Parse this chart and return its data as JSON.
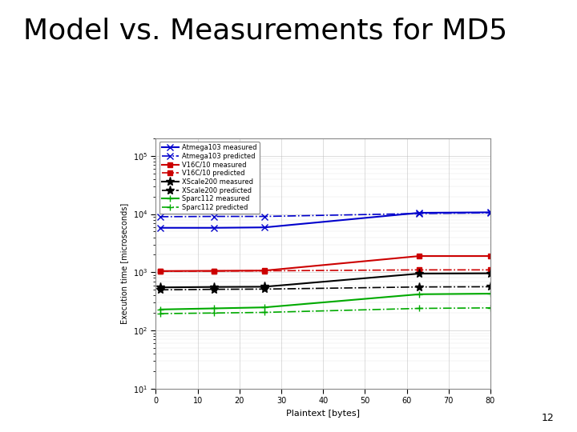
{
  "title": "Model vs. Measurements for MD5",
  "title_fontsize": 26,
  "xlabel": "Plaintext [bytes]",
  "ylabel": "Execution time [microseconds]",
  "x_values": [
    1,
    14,
    26,
    63,
    80
  ],
  "series": [
    {
      "label": "Atmega103 measured",
      "color": "#0000cc",
      "linestyle": "-",
      "marker": "x",
      "linewidth": 1.5,
      "markersize": 6,
      "y": [
        5800,
        5800,
        5900,
        10500,
        10700
      ]
    },
    {
      "label": "Atmega103 predicted",
      "color": "#0000cc",
      "linestyle": "-.",
      "marker": "x",
      "linewidth": 1.2,
      "markersize": 6,
      "y": [
        9000,
        9100,
        9100,
        10200,
        10500
      ]
    },
    {
      "label": "V16C/10 measured",
      "color": "#cc0000",
      "linestyle": "-",
      "marker": "s",
      "linewidth": 1.5,
      "markersize": 5,
      "y": [
        1050,
        1060,
        1070,
        1900,
        1900
      ]
    },
    {
      "label": "V16C/10 predicted",
      "color": "#cc0000",
      "linestyle": "-.",
      "marker": "s",
      "linewidth": 1.2,
      "markersize": 5,
      "y": [
        1050,
        1050,
        1060,
        1100,
        1100
      ]
    },
    {
      "label": "XScale200 measured",
      "color": "#000000",
      "linestyle": "-",
      "marker": "*",
      "linewidth": 1.5,
      "markersize": 8,
      "y": [
        550,
        560,
        565,
        950,
        960
      ]
    },
    {
      "label": "XScale200 predicted",
      "color": "#000000",
      "linestyle": "-.",
      "marker": "*",
      "linewidth": 1.2,
      "markersize": 8,
      "y": [
        500,
        510,
        515,
        560,
        565
      ]
    },
    {
      "label": "Sparc112 measured",
      "color": "#00aa00",
      "linestyle": "-",
      "marker": "+",
      "linewidth": 1.5,
      "markersize": 6,
      "y": [
        230,
        240,
        250,
        420,
        430
      ]
    },
    {
      "label": "Sparc112 predicted",
      "color": "#00aa00",
      "linestyle": "-.",
      "marker": "+",
      "linewidth": 1.2,
      "markersize": 6,
      "y": [
        195,
        200,
        205,
        240,
        245
      ]
    }
  ],
  "ylim": [
    10,
    200000
  ],
  "xlim": [
    0,
    80
  ],
  "xticks": [
    0,
    10,
    20,
    30,
    40,
    50,
    60,
    70,
    80
  ],
  "background_color": "#ffffff",
  "grid_color": "#bbbbbb",
  "bar1_color": "#00aacc",
  "bar2_color": "#882288",
  "page_number": "12"
}
